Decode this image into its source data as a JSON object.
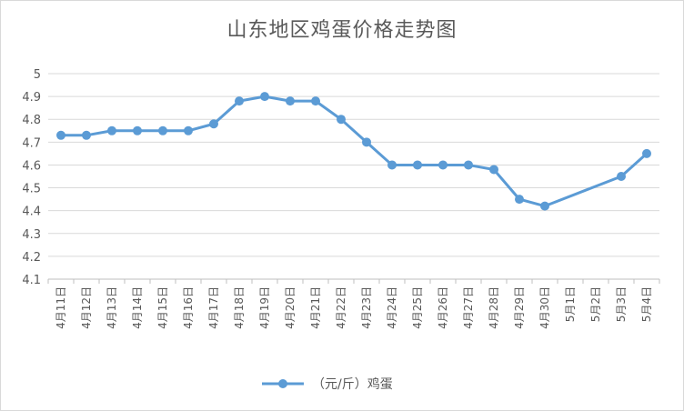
{
  "chart_data": {
    "type": "line",
    "title": "山东地区鸡蛋价格走势图",
    "xlabel": "",
    "ylabel": "",
    "ylim": [
      4.1,
      5
    ],
    "yticks": [
      "5",
      "4.9",
      "4.8",
      "4.7",
      "4.6",
      "4.5",
      "4.4",
      "4.3",
      "4.2",
      "4.1"
    ],
    "grid": true,
    "legend": "bottom",
    "categories": [
      "4月11日",
      "4月12日",
      "4月13日",
      "4月14日",
      "4月15日",
      "4月16日",
      "4月17日",
      "4月18日",
      "4月19日",
      "4月20日",
      "4月21日",
      "4月22日",
      "4月23日",
      "4月24日",
      "4月25日",
      "4月26日",
      "4月27日",
      "4月28日",
      "4月29日",
      "4月30日",
      "5月1日",
      "5月2日",
      "5月3日",
      "5月4日"
    ],
    "series": [
      {
        "name": "（元/斤）鸡蛋",
        "color": "#5b9bd5",
        "values": [
          4.73,
          4.73,
          4.75,
          4.75,
          4.75,
          4.75,
          4.78,
          4.88,
          4.9,
          4.88,
          4.88,
          4.8,
          4.7,
          4.6,
          4.6,
          4.6,
          4.6,
          4.58,
          4.45,
          4.42,
          null,
          null,
          4.55,
          4.65
        ]
      }
    ]
  }
}
